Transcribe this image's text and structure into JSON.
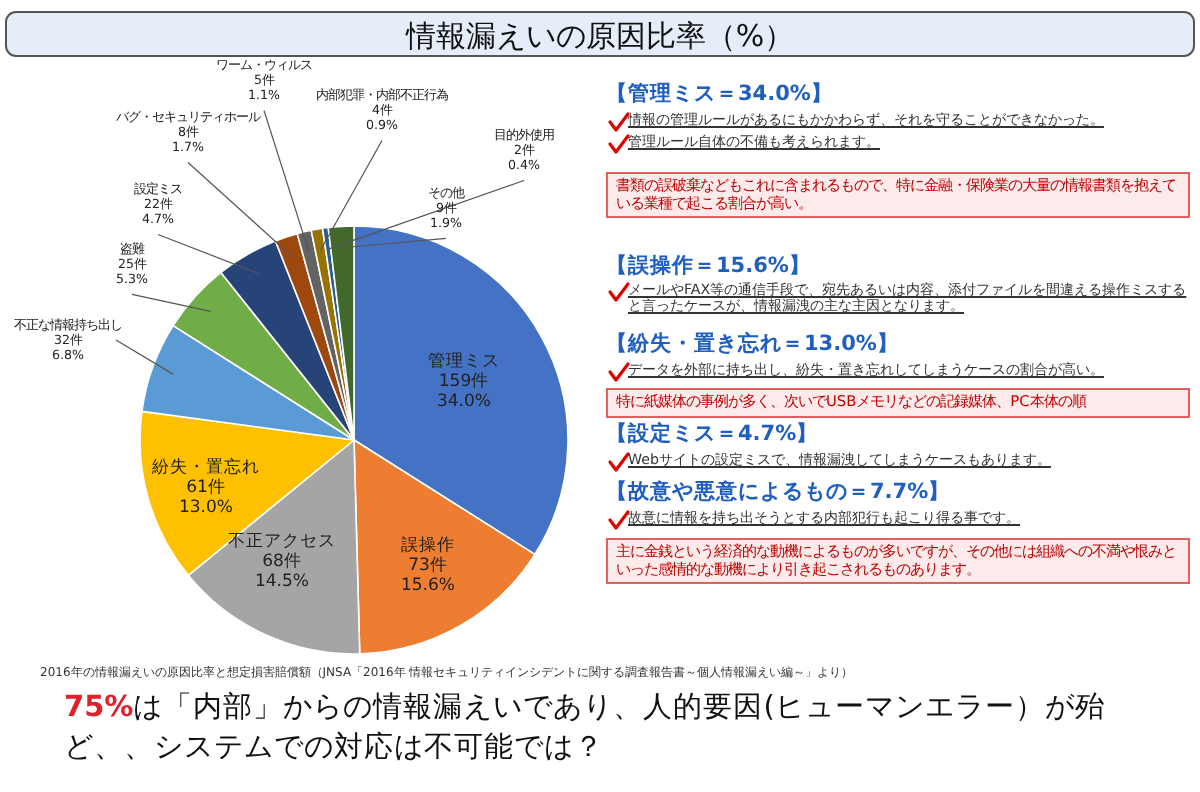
{
  "chart_data": {
    "type": "pie",
    "title": "情報漏えいの原因比率（%）",
    "categories": [
      "管理ミス",
      "誤操作",
      "不正アクセス",
      "紛失・置忘れ",
      "不正な情報持ち出し",
      "盗難",
      "設定ミス",
      "バグ・セキュリティホール",
      "ワーム・ウィルス",
      "内部犯罪・内部不正行為",
      "目的外使用",
      "その他"
    ],
    "values": [
      159,
      73,
      68,
      61,
      32,
      25,
      22,
      8,
      5,
      4,
      2,
      9
    ],
    "value_labels": [
      "159件\n34.0%",
      "73件\n15.6%",
      "68件\n14.5%",
      "61件\n13.0%",
      "32件\n6.8%",
      "25件\n5.3%",
      "22件\n4.7%",
      "8件\n1.7%",
      "5件\n1.1%",
      "4件\n0.9%",
      "2件\n0.4%",
      "9件\n1.9%"
    ],
    "colors": [
      "#4472c4",
      "#ed7d31",
      "#a5a5a5",
      "#ffc000",
      "#5b9bd5",
      "#70ad47",
      "#264478",
      "#9e480e",
      "#636363",
      "#997300",
      "#255e91",
      "#43682b"
    ],
    "annotations": [
      "【管理ミス＝34.0%】",
      "情報の管理ルールがあるにもかかわらず、それを守ることができなかった。",
      "管理ルール自体の不備も考えられます。",
      "書類の誤破棄などもこれに含まれるもので、特に金融・保険業の大量の情報書類を抱えている業種で起こる割合が高い。",
      "【誤操作＝15.6%】",
      "メールやFAX等の通信手段で、宛先あるいは内容、添付ファイルを間違える操作ミスすると言ったケースが、情報漏洩の主な主因となります。",
      "【紛失・置き忘れ＝13.0%】",
      "データを外部に持ち出し、紛失・置き忘れしてしまうケースの割合が高い。",
      "特に紙媒体の事例が多く、次いでUSBメモリなどの記録媒体、PC本体の順",
      "【設定ミス＝4.7%】",
      "Webサイトの設定ミスで、情報漏洩してしまうケースもあります。",
      "【故意や悪意によるもの＝7.7%】",
      "故意に情報を持ち出そうとする内部犯行も起こり得る事です。",
      "主に金銭という経済的な動機によるものが多いですが、その他には組織への不満や恨みといった感情的な動機により引き起こされるものあります。",
      "2016年の情報漏えいの原因比率と想定損害賠償額（JNSA「2016年 情報セキュリティインシデントに関する調査報告書～個人情報漏えい編～」より）",
      "75%は「内部」からの情報漏えいであり、人的要因(ヒューマンエラー）が殆ど、、システムでの対応は不可能では？"
    ]
  }
}
